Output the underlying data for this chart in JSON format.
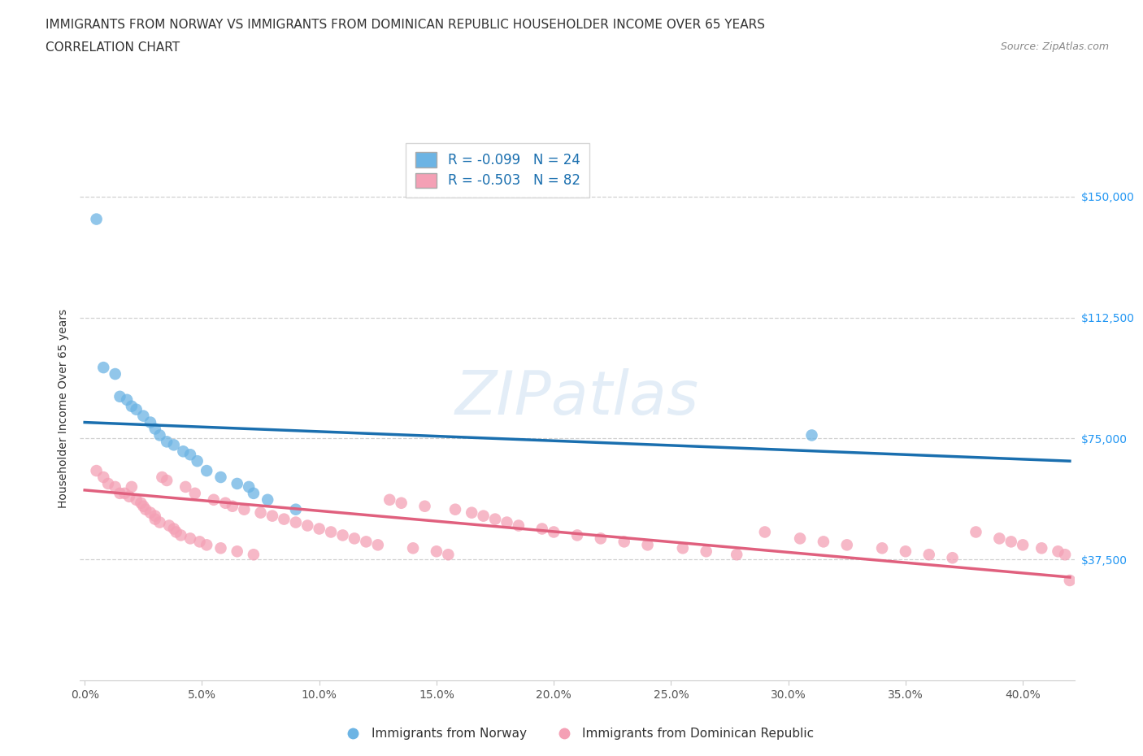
{
  "title_line1": "IMMIGRANTS FROM NORWAY VS IMMIGRANTS FROM DOMINICAN REPUBLIC HOUSEHOLDER INCOME OVER 65 YEARS",
  "title_line2": "CORRELATION CHART",
  "source_text": "Source: ZipAtlas.com",
  "ylabel": "Householder Income Over 65 years",
  "norway_R": -0.099,
  "norway_N": 24,
  "dr_R": -0.503,
  "dr_N": 82,
  "ytick_labels": [
    "$37,500",
    "$75,000",
    "$112,500",
    "$150,000"
  ],
  "ytick_values": [
    37500,
    75000,
    112500,
    150000
  ],
  "y_min": 0,
  "y_max": 168750,
  "x_min": -0.002,
  "x_max": 0.422,
  "norway_color": "#6cb4e4",
  "dr_color": "#f4a0b5",
  "norway_line_color": "#1a6faf",
  "dr_line_color": "#e0607e",
  "norway_scatter_x": [
    0.005,
    0.008,
    0.013,
    0.015,
    0.018,
    0.02,
    0.022,
    0.025,
    0.028,
    0.03,
    0.032,
    0.035,
    0.038,
    0.042,
    0.045,
    0.048,
    0.052,
    0.058,
    0.065,
    0.07,
    0.072,
    0.078,
    0.09,
    0.31
  ],
  "norway_scatter_y": [
    143000,
    97000,
    95000,
    88000,
    87000,
    85000,
    84000,
    82000,
    80000,
    78000,
    76000,
    74000,
    73000,
    71000,
    70000,
    68000,
    65000,
    63000,
    61000,
    60000,
    58000,
    56000,
    53000,
    76000
  ],
  "dr_scatter_x": [
    0.005,
    0.008,
    0.01,
    0.013,
    0.015,
    0.017,
    0.019,
    0.02,
    0.022,
    0.024,
    0.025,
    0.026,
    0.028,
    0.03,
    0.03,
    0.032,
    0.033,
    0.035,
    0.036,
    0.038,
    0.039,
    0.041,
    0.043,
    0.045,
    0.047,
    0.049,
    0.052,
    0.055,
    0.058,
    0.06,
    0.063,
    0.065,
    0.068,
    0.072,
    0.075,
    0.08,
    0.085,
    0.09,
    0.095,
    0.1,
    0.105,
    0.11,
    0.115,
    0.12,
    0.125,
    0.13,
    0.135,
    0.14,
    0.145,
    0.15,
    0.155,
    0.158,
    0.165,
    0.17,
    0.175,
    0.18,
    0.185,
    0.195,
    0.2,
    0.21,
    0.22,
    0.23,
    0.24,
    0.255,
    0.265,
    0.278,
    0.29,
    0.305,
    0.315,
    0.325,
    0.34,
    0.35,
    0.36,
    0.37,
    0.38,
    0.39,
    0.395,
    0.4,
    0.408,
    0.415,
    0.418,
    0.42
  ],
  "dr_scatter_y": [
    65000,
    63000,
    61000,
    60000,
    58000,
    58000,
    57000,
    60000,
    56000,
    55000,
    54000,
    53000,
    52000,
    51000,
    50000,
    49000,
    63000,
    62000,
    48000,
    47000,
    46000,
    45000,
    60000,
    44000,
    58000,
    43000,
    42000,
    56000,
    41000,
    55000,
    54000,
    40000,
    53000,
    39000,
    52000,
    51000,
    50000,
    49000,
    48000,
    47000,
    46000,
    45000,
    44000,
    43000,
    42000,
    56000,
    55000,
    41000,
    54000,
    40000,
    39000,
    53000,
    52000,
    51000,
    50000,
    49000,
    48000,
    47000,
    46000,
    45000,
    44000,
    43000,
    42000,
    41000,
    40000,
    39000,
    46000,
    44000,
    43000,
    42000,
    41000,
    40000,
    39000,
    38000,
    46000,
    44000,
    43000,
    42000,
    41000,
    40000,
    39000,
    31000
  ],
  "norway_trend_x": [
    0.0,
    0.42
  ],
  "norway_trend_y": [
    80000,
    68000
  ],
  "dr_trend_x": [
    0.0,
    0.42
  ],
  "dr_trend_y": [
    59000,
    32000
  ],
  "background_color": "#ffffff",
  "grid_color": "#d0d0d0",
  "watermark_text": "ZIPatlas",
  "title_fontsize": 11,
  "axis_label_fontsize": 10,
  "tick_fontsize": 10,
  "legend_fontsize": 12,
  "xtick_positions": [
    0.0,
    0.05,
    0.1,
    0.15,
    0.2,
    0.25,
    0.3,
    0.35,
    0.4
  ],
  "xtick_labels": [
    "0.0%",
    "5.0%",
    "10.0%",
    "15.0%",
    "20.0%",
    "25.0%",
    "30.0%",
    "35.0%",
    "40.0%"
  ]
}
